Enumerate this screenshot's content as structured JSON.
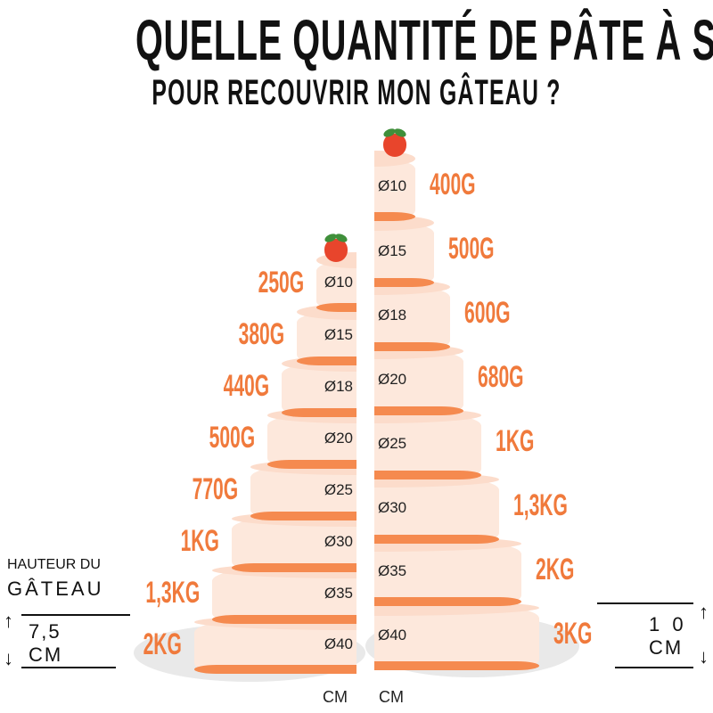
{
  "title": {
    "line1": "QUELLE QUANTITÉ DE PÂTE À SUCRE",
    "line2": "POUR RECOUVRIR MON GÂTEAU ?"
  },
  "colors": {
    "accent": "#f07a3c",
    "cake_body": "#fde8dc",
    "band": "#f58a4f",
    "plate": "#e9e9e9"
  },
  "left_cake": {
    "height_label_1": "HAUTEUR DU",
    "height_label_2": "GÂTEAU",
    "height_value": "7,5",
    "height_unit": "CM",
    "unit": "CM",
    "tiers": [
      {
        "diameter": "Ø10",
        "weight": "250G"
      },
      {
        "diameter": "Ø15",
        "weight": "380G"
      },
      {
        "diameter": "Ø18",
        "weight": "440G"
      },
      {
        "diameter": "Ø20",
        "weight": "500G"
      },
      {
        "diameter": "Ø25",
        "weight": "770G"
      },
      {
        "diameter": "Ø30",
        "weight": "1KG"
      },
      {
        "diameter": "Ø35",
        "weight": "1,3KG"
      },
      {
        "diameter": "Ø40",
        "weight": "2KG"
      }
    ]
  },
  "right_cake": {
    "height_value": "1 0",
    "height_unit": "CM",
    "unit": "CM",
    "tiers": [
      {
        "diameter": "Ø10",
        "weight": "400G"
      },
      {
        "diameter": "Ø15",
        "weight": "500G"
      },
      {
        "diameter": "Ø18",
        "weight": "600G"
      },
      {
        "diameter": "Ø20",
        "weight": "680G"
      },
      {
        "diameter": "Ø25",
        "weight": "1KG"
      },
      {
        "diameter": "Ø30",
        "weight": "1,3KG"
      },
      {
        "diameter": "Ø35",
        "weight": "2KG"
      },
      {
        "diameter": "Ø40",
        "weight": "3KG"
      }
    ]
  }
}
